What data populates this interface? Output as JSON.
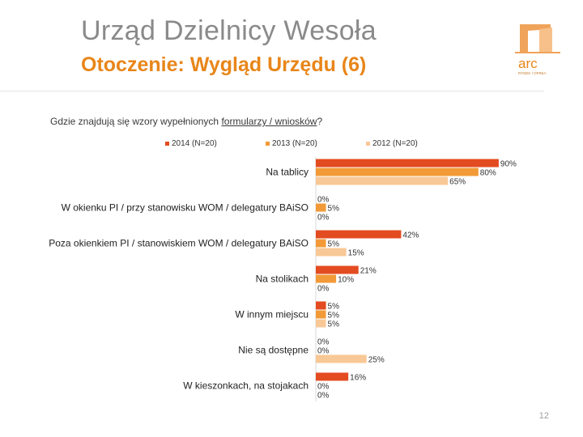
{
  "header": {
    "title": "Urząd Dzielnicy Wesoła",
    "subtitle": "Otoczenie: Wygląd Urzędu (6)"
  },
  "logo": {
    "text": "arc",
    "tagline": "RYNEK I OPINIA",
    "icon": "building-stripe-icon"
  },
  "question": {
    "part1": "Gdzie znajdują się wzory wypełnionych ",
    "part2": "formularzy / wniosków",
    "part3": "?"
  },
  "colors": {
    "s2014": "#e34b21",
    "s2013": "#f29a37",
    "s2012": "#f8c896",
    "title": "#8a8a8a",
    "accent": "#e8861a"
  },
  "chart_data": {
    "type": "bar",
    "orientation": "horizontal",
    "categories": [
      "Na tablicy",
      "W okienku PI / przy stanowisku WOM / delegatury BAiSO",
      "Poza okienkiem PI / stanowiskiem WOM / delegatury BAiSO",
      "Na stolikach",
      "W innym miejscu",
      "Nie są dostępne",
      "W kieszonkach, na stojakach"
    ],
    "series": [
      {
        "name": "2014 (N=20)",
        "values": [
          90,
          0,
          42,
          21,
          5,
          0,
          16
        ]
      },
      {
        "name": "2013 (N=20)",
        "values": [
          80,
          5,
          5,
          10,
          5,
          0,
          0
        ]
      },
      {
        "name": "2012 (N=20)",
        "values": [
          65,
          0,
          15,
          0,
          5,
          25,
          0
        ]
      }
    ],
    "unit": "%",
    "xlim": [
      0,
      100
    ],
    "legend_position": "top",
    "grid": false
  },
  "page_number": "12"
}
